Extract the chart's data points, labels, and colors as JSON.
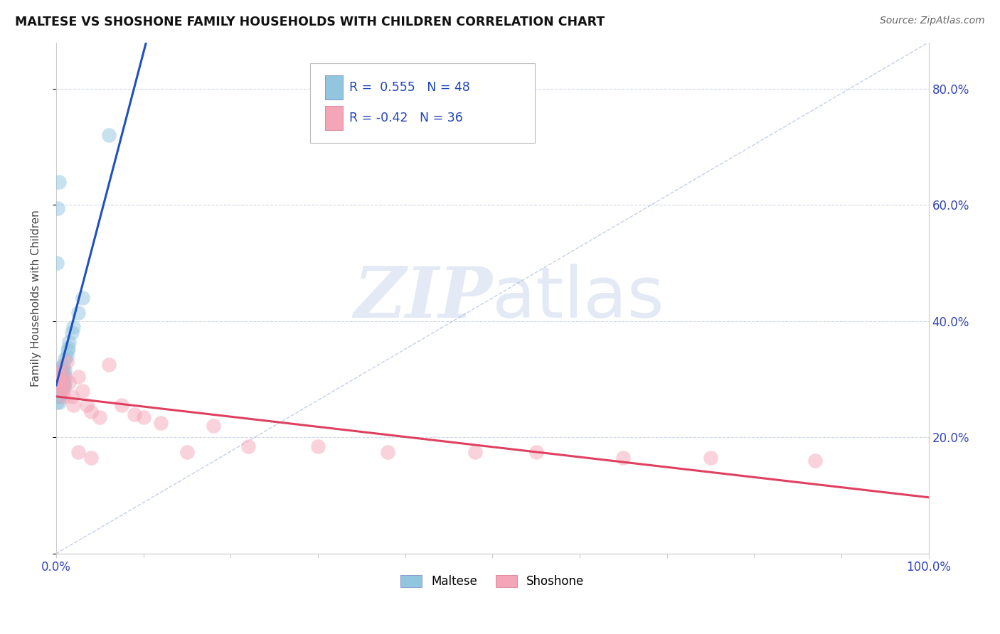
{
  "title": "MALTESE VS SHOSHONE FAMILY HOUSEHOLDS WITH CHILDREN CORRELATION CHART",
  "source": "Source: ZipAtlas.com",
  "ylabel": "Family Households with Children",
  "maltese_R": 0.555,
  "maltese_N": 48,
  "shoshone_R": -0.42,
  "shoshone_N": 36,
  "maltese_color": "#92c5de",
  "shoshone_color": "#f4a6b8",
  "maltese_line_color": "#2050c0",
  "shoshone_line_color": "#e04060",
  "diag_color": "#aabbdd",
  "watermark_color": "#cdd8ee",
  "grid_color": "#d0d8e8",
  "xlim": [
    0.0,
    1.0
  ],
  "ylim": [
    0.0,
    0.88
  ],
  "maltese_x": [
    0.001,
    0.001,
    0.001,
    0.001,
    0.002,
    0.002,
    0.002,
    0.002,
    0.002,
    0.003,
    0.003,
    0.003,
    0.003,
    0.003,
    0.003,
    0.004,
    0.004,
    0.004,
    0.004,
    0.005,
    0.005,
    0.005,
    0.005,
    0.006,
    0.006,
    0.006,
    0.007,
    0.007,
    0.007,
    0.008,
    0.008,
    0.009,
    0.009,
    0.01,
    0.01,
    0.01,
    0.012,
    0.013,
    0.014,
    0.015,
    0.018,
    0.02,
    0.025,
    0.03,
    0.001,
    0.002,
    0.003,
    0.06
  ],
  "maltese_y": [
    0.285,
    0.295,
    0.31,
    0.26,
    0.3,
    0.315,
    0.28,
    0.295,
    0.27,
    0.315,
    0.3,
    0.285,
    0.295,
    0.275,
    0.26,
    0.305,
    0.29,
    0.28,
    0.27,
    0.32,
    0.305,
    0.29,
    0.275,
    0.31,
    0.295,
    0.28,
    0.315,
    0.3,
    0.285,
    0.325,
    0.295,
    0.31,
    0.29,
    0.335,
    0.315,
    0.295,
    0.34,
    0.35,
    0.355,
    0.365,
    0.38,
    0.39,
    0.415,
    0.44,
    0.5,
    0.595,
    0.64,
    0.72
  ],
  "shoshone_x": [
    0.001,
    0.002,
    0.003,
    0.004,
    0.005,
    0.006,
    0.007,
    0.008,
    0.009,
    0.01,
    0.012,
    0.015,
    0.018,
    0.02,
    0.025,
    0.03,
    0.035,
    0.04,
    0.05,
    0.06,
    0.075,
    0.09,
    0.1,
    0.12,
    0.15,
    0.18,
    0.22,
    0.3,
    0.38,
    0.48,
    0.55,
    0.65,
    0.75,
    0.87,
    0.025,
    0.04
  ],
  "shoshone_y": [
    0.295,
    0.31,
    0.285,
    0.3,
    0.315,
    0.28,
    0.295,
    0.27,
    0.285,
    0.305,
    0.33,
    0.295,
    0.27,
    0.255,
    0.305,
    0.28,
    0.255,
    0.245,
    0.235,
    0.325,
    0.255,
    0.24,
    0.235,
    0.225,
    0.175,
    0.22,
    0.185,
    0.185,
    0.175,
    0.175,
    0.175,
    0.165,
    0.165,
    0.16,
    0.175,
    0.165
  ]
}
